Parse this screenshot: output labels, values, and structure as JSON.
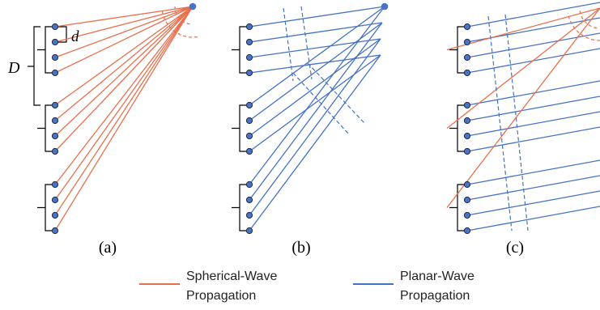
{
  "colors": {
    "spherical": "#E8704E",
    "planar": "#4472C4",
    "node_fill": "#4A73C6",
    "node_stroke": "#1F2A44",
    "bracket": "#000000"
  },
  "labels": {
    "D": "D",
    "d": "d"
  },
  "panels": [
    {
      "caption": "(a)"
    },
    {
      "caption": "(b)"
    },
    {
      "caption": "(c)"
    }
  ],
  "legend": {
    "spherical": {
      "line1": "Spherical-Wave",
      "line2": "Propagation"
    },
    "planar": {
      "line1": "Planar-Wave",
      "line2": "Propagation"
    }
  }
}
